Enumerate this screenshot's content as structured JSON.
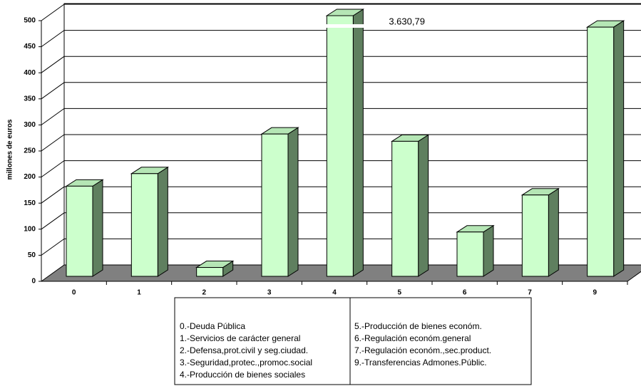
{
  "chart_data": {
    "type": "bar3d",
    "y_label": "millones de euros",
    "categories": [
      "0",
      "1",
      "2",
      "3",
      "4",
      "5",
      "6",
      "7",
      "9"
    ],
    "values": [
      173,
      197,
      17,
      273,
      3630.79,
      259,
      85,
      156,
      478
    ],
    "value_labels": [
      null,
      null,
      null,
      null,
      "3.630,79",
      null,
      null,
      null,
      null
    ],
    "color": "#ccffcc",
    "ylim": [
      0,
      500
    ],
    "yticks": [
      0,
      50,
      100,
      150,
      200,
      250,
      300,
      350,
      400,
      450,
      500
    ],
    "grid": true,
    "legend": [
      [
        "0.-Deuda Pública",
        "1.-Servicios de carácter general",
        "2.-Defensa,prot.civil y seg.ciudad.",
        "3.-Seguridad,protec.,promoc.social",
        "4.-Producción de bienes sociales"
      ],
      [
        "5.-Producción de bienes económ.",
        "6.-Regulación económ.general",
        "7.-Regulación económ.,sec.product.",
        "9.-Transferencias Admones.Públic."
      ]
    ]
  }
}
